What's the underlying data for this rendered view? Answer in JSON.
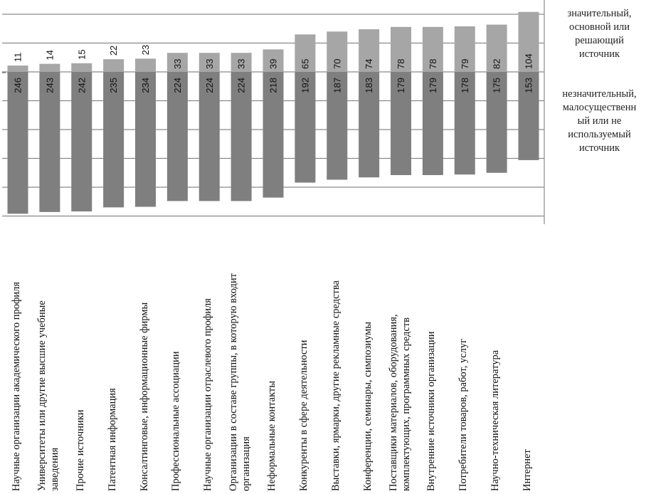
{
  "chart_data": {
    "type": "bar",
    "stacked": true,
    "orientation": "vertical, diverging",
    "categories": [
      [
        "Научные организации академического профиля"
      ],
      [
        "Университеты или другие высшие учебные",
        "заведения"
      ],
      [
        "Прочие источники"
      ],
      [
        "Патентная информация"
      ],
      [
        "Консалтинговые, информационные фирмы"
      ],
      [
        "Профессиональные ассоциации"
      ],
      [
        "Научные организации отраслевого профиля"
      ],
      [
        "Организации в составе группы, в которую входит",
        "организация"
      ],
      [
        "Неформальные контакты"
      ],
      [
        "Конкуренты в сфере деятельности"
      ],
      [
        "Выставки, ярмарки, другие рекламные средства"
      ],
      [
        "Конференции, семинары, симпозиумы"
      ],
      [
        "Поставщики материалов, оборудования,",
        "комплектующих, программных средств"
      ],
      [
        "Внутренние источники организации"
      ],
      [
        "Потребители товаров, работ, услуг"
      ],
      [
        "Научно-техническая литература"
      ],
      [
        "Интернет"
      ]
    ],
    "series": [
      {
        "name": "значительный, основной или решающий источник",
        "legend_lines": [
          "значительный,",
          "основной или",
          "решающий",
          "источник"
        ],
        "direction": "up",
        "color": "#a6a6a6",
        "values": [
          11,
          14,
          15,
          22,
          23,
          33,
          33,
          33,
          39,
          65,
          70,
          74,
          78,
          78,
          79,
          82,
          104
        ]
      },
      {
        "name": "незначительный, малосущественный или не используемый источник",
        "legend_lines": [
          "незначительный,",
          "малосущественн",
          "ый или не",
          "используемый",
          "источник"
        ],
        "direction": "down",
        "color": "#7f7f7f",
        "values": [
          246,
          243,
          242,
          235,
          234,
          224,
          224,
          224,
          218,
          192,
          187,
          183,
          179,
          179,
          178,
          175,
          153
        ]
      }
    ],
    "ylim": [
      -250,
      100
    ],
    "grid_step": 50,
    "grid": true,
    "legend_position": "right",
    "data_labels": true,
    "title": "",
    "xlabel": "",
    "ylabel": ""
  }
}
